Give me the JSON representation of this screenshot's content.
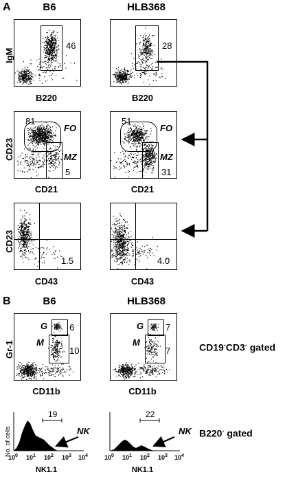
{
  "panel_a": {
    "letter": "A",
    "columns": [
      "B6",
      "HLB368"
    ],
    "rows": [
      {
        "y_label": "IgM",
        "x_label": "B220",
        "plots": [
          {
            "gates": [
              {
                "value": "46"
              }
            ]
          },
          {
            "gates": [
              {
                "value": "28"
              }
            ]
          }
        ]
      },
      {
        "y_label": "CD23",
        "x_label": "CD21",
        "plots": [
          {
            "gates": [
              {
                "value": "81",
                "name": "FO"
              },
              {
                "value": "5",
                "name": "MZ"
              }
            ]
          },
          {
            "gates": [
              {
                "value": "51",
                "name": "FO"
              },
              {
                "value": "31",
                "name": "MZ"
              }
            ]
          }
        ]
      },
      {
        "y_label": "CD23",
        "x_label": "CD43",
        "plots": [
          {
            "quadrant_value": "1.5"
          },
          {
            "quadrant_value": "4.0"
          }
        ]
      }
    ]
  },
  "panel_b": {
    "letter": "B",
    "columns": [
      "B6",
      "HLB368"
    ],
    "scatter": {
      "y_label": "Gr-1",
      "x_label": "CD11b",
      "gate_note": {
        "prefix": "CD19",
        "sup1": "-",
        "mid": "CD3",
        "sup2": "-",
        "suffix": " gated"
      },
      "plots": [
        {
          "G": {
            "name": "G",
            "value": "6"
          },
          "M": {
            "name": "M",
            "value": "10"
          }
        },
        {
          "G": {
            "name": "G",
            "value": "7"
          },
          "M": {
            "name": "M",
            "value": "7"
          }
        }
      ]
    },
    "histogram": {
      "y_label": "No. of cells",
      "x_label": "NK1.1",
      "ticks": [
        "10",
        "10",
        "10",
        "10",
        "10"
      ],
      "tick_exps": [
        "0",
        "1",
        "2",
        "3",
        "4"
      ],
      "gate_note": {
        "prefix": "B220",
        "sup1": "-",
        "suffix": " gated"
      },
      "plots": [
        {
          "value": "19",
          "arrow_label": "NK"
        },
        {
          "value": "22",
          "arrow_label": "NK"
        }
      ]
    }
  }
}
